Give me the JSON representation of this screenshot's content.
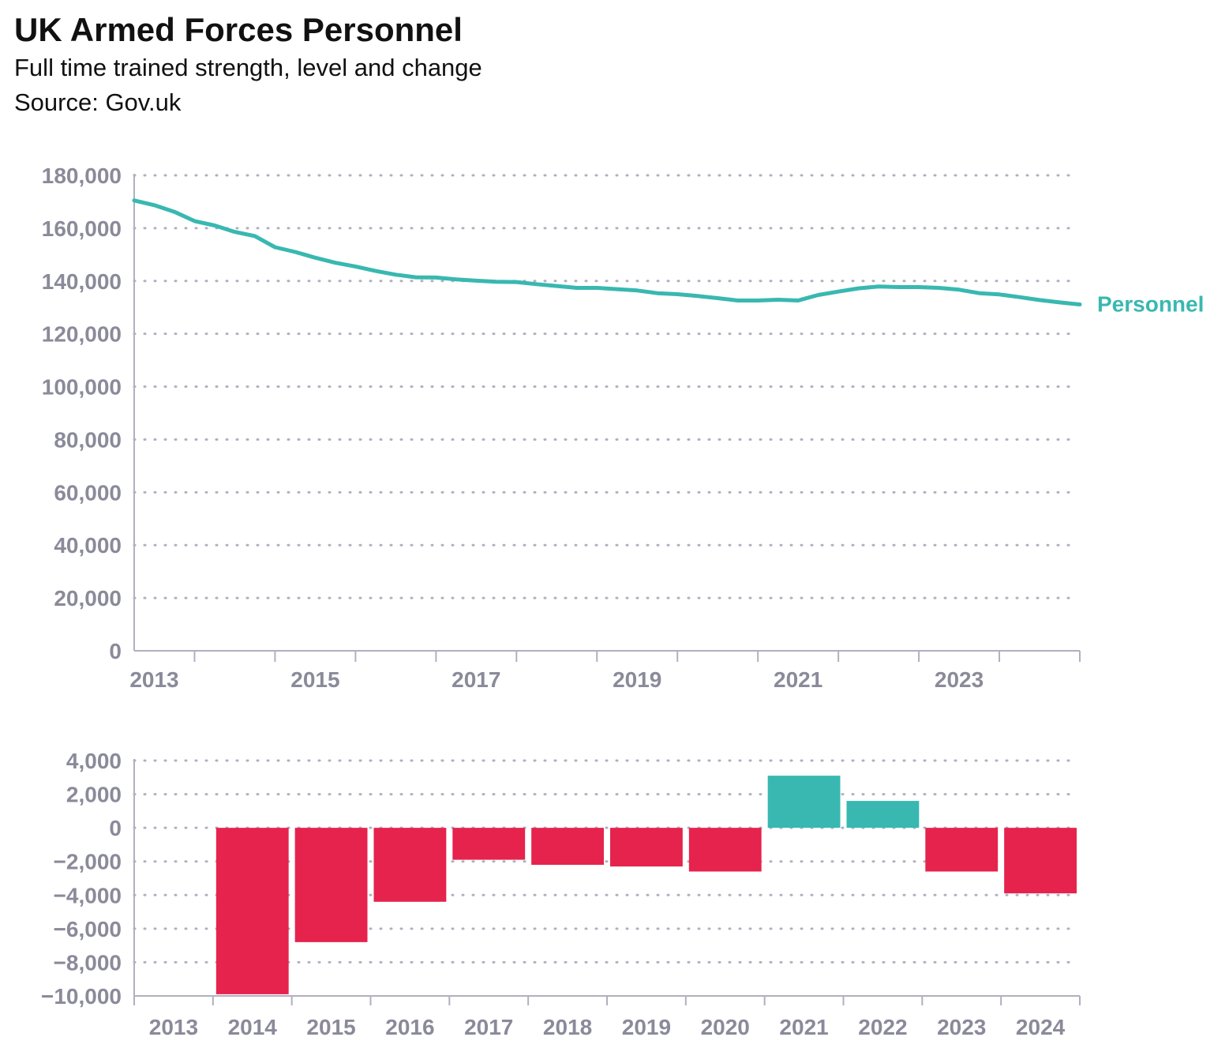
{
  "header": {
    "title": "UK Armed Forces Personnel",
    "subtitle": "Full time trained strength, level and change",
    "source": "Source: Gov.uk"
  },
  "colors": {
    "line": "#38b8b0",
    "positive": "#38b8b0",
    "negative": "#e5234d",
    "axis": "#b0b0c0",
    "grid": "#b0b0c0",
    "tick_text": "#8a8a9a"
  },
  "chart_data": [
    {
      "type": "line",
      "title": "",
      "xlabel": "",
      "ylabel": "",
      "xlim": [
        2012.25,
        2024.0
      ],
      "ylim": [
        0,
        180000
      ],
      "grid": "horizontal dotted",
      "y_ticks": [
        0,
        20000,
        40000,
        60000,
        80000,
        100000,
        120000,
        140000,
        160000,
        180000
      ],
      "y_tick_labels": [
        "0",
        "20,000",
        "40,000",
        "60,000",
        "80,000",
        "100,000",
        "120,000",
        "140,000",
        "160,000",
        "180,000"
      ],
      "x_tick_labels": [
        "2013",
        "2015",
        "2017",
        "2019",
        "2021",
        "2023"
      ],
      "series": [
        {
          "name": "Personnel",
          "x": [
            2012.25,
            2012.5,
            2012.75,
            2013.0,
            2013.25,
            2013.5,
            2013.75,
            2014.0,
            2014.25,
            2014.5,
            2014.75,
            2015.0,
            2015.25,
            2015.5,
            2015.75,
            2016.0,
            2016.25,
            2016.5,
            2016.75,
            2017.0,
            2017.25,
            2017.5,
            2017.75,
            2018.0,
            2018.25,
            2018.5,
            2018.75,
            2019.0,
            2019.25,
            2019.5,
            2019.75,
            2020.0,
            2020.25,
            2020.5,
            2020.75,
            2021.0,
            2021.25,
            2021.5,
            2021.75,
            2022.0,
            2022.25,
            2022.5,
            2022.75,
            2023.0,
            2023.25,
            2023.5,
            2023.75,
            2024.0
          ],
          "y": [
            170500,
            168700,
            166200,
            162700,
            161000,
            158600,
            157000,
            152800,
            151000,
            148800,
            146900,
            145500,
            143800,
            142400,
            141400,
            141300,
            140600,
            140100,
            139700,
            139600,
            138800,
            138100,
            137400,
            137400,
            136900,
            136400,
            135400,
            135000,
            134300,
            133500,
            132600,
            132600,
            132900,
            132600,
            134700,
            136000,
            137200,
            137900,
            137700,
            137700,
            137400,
            136700,
            135400,
            134900,
            133900,
            132800,
            131900,
            131100
          ]
        }
      ]
    },
    {
      "type": "bar",
      "title": "",
      "xlabel": "",
      "ylabel": "",
      "categories": [
        "2013",
        "2014",
        "2015",
        "2016",
        "2017",
        "2018",
        "2019",
        "2020",
        "2021",
        "2022",
        "2023",
        "2024"
      ],
      "values": [
        null,
        -9900,
        -6800,
        -4400,
        -1900,
        -2200,
        -2300,
        -2600,
        3100,
        1600,
        -2600,
        -3900
      ],
      "ylim": [
        -10000,
        4000
      ],
      "grid": "horizontal dotted",
      "y_ticks": [
        -10000,
        -8000,
        -6000,
        -4000,
        -2000,
        0,
        2000,
        4000
      ],
      "y_tick_labels": [
        "−10,000",
        "−8,000",
        "−6,000",
        "−4,000",
        "−2,000",
        "0",
        "2,000",
        "4,000"
      ]
    }
  ]
}
